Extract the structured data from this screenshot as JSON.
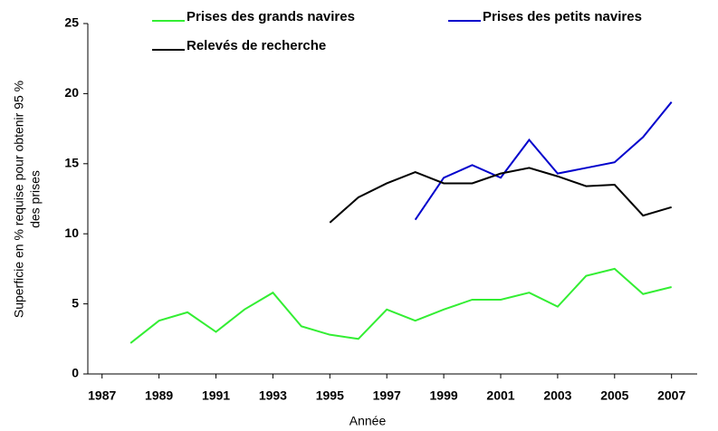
{
  "chart_data": {
    "type": "line",
    "xlabel": "Année",
    "ylabel": [
      "Superficie en % requise pour obtenir 95 %",
      "des prises"
    ],
    "x": [
      1988,
      1989,
      1990,
      1991,
      1992,
      1993,
      1994,
      1995,
      1996,
      1997,
      1998,
      1999,
      2000,
      2001,
      2002,
      2003,
      2004,
      2005,
      2006,
      2007
    ],
    "series": [
      {
        "name": "Prises des grands navires",
        "color": "#33ee33",
        "values": [
          2.2,
          3.8,
          4.4,
          3.0,
          4.6,
          5.8,
          3.4,
          2.8,
          2.5,
          4.6,
          3.8,
          4.6,
          5.3,
          5.3,
          5.8,
          4.8,
          7.0,
          7.5,
          5.7,
          6.2
        ]
      },
      {
        "name": "Prises des petits navires",
        "color": "#0000cc",
        "values": [
          null,
          null,
          null,
          null,
          null,
          null,
          null,
          null,
          null,
          null,
          11.0,
          14.0,
          14.9,
          14.0,
          16.7,
          14.3,
          14.7,
          15.1,
          16.9,
          19.4
        ]
      },
      {
        "name": "Relevés de recherche",
        "color": "#000000",
        "values": [
          null,
          null,
          null,
          null,
          null,
          null,
          null,
          10.8,
          12.6,
          13.6,
          14.4,
          13.6,
          13.6,
          14.3,
          14.7,
          14.1,
          13.4,
          13.5,
          11.3,
          11.9
        ]
      }
    ],
    "xlim": [
      1986.5,
      2007.9
    ],
    "xticks": [
      1987,
      1989,
      1991,
      1993,
      1995,
      1997,
      1999,
      2001,
      2003,
      2005,
      2007
    ],
    "ylim": [
      0,
      25
    ],
    "yticks": [
      0,
      5,
      10,
      15,
      20,
      25
    ],
    "grid": false
  }
}
